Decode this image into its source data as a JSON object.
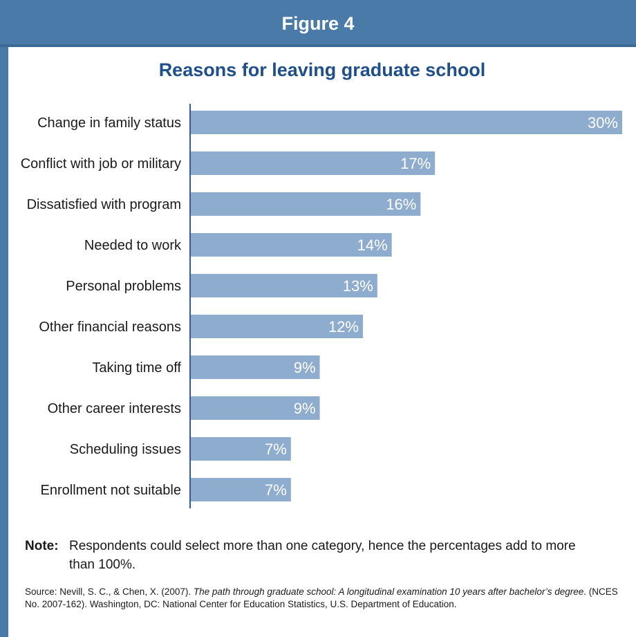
{
  "header": {
    "title": "Figure 4"
  },
  "chart_data": {
    "type": "bar",
    "orientation": "horizontal",
    "title": "Reasons for leaving graduate school",
    "categories": [
      "Change in family status",
      "Conflict with job or military",
      "Dissatisfied with program",
      "Needed to work",
      "Personal problems",
      "Other financial reasons",
      "Taking time off",
      "Other career interests",
      "Scheduling issues",
      "Enrollment not suitable"
    ],
    "values": [
      30,
      17,
      16,
      14,
      13,
      12,
      9,
      9,
      7,
      7
    ],
    "value_labels": [
      "30%",
      "17%",
      "16%",
      "14%",
      "13%",
      "12%",
      "9%",
      "9%",
      "7%",
      "7%"
    ],
    "xlim": [
      0,
      30
    ],
    "grid": false,
    "legend": "none",
    "bar_color": "#8eacce",
    "axis_color": "#2f5f90"
  },
  "note": {
    "label": "Note:",
    "text": "Respondents could select more than one category, hence the percentages add to more than 100%."
  },
  "source": {
    "prefix": "Source: Nevill, S. C., & Chen, X. (2007). ",
    "title": "The path through graduate school: A longitudinal examination 10 years after bachelor’s degree",
    "suffix": ". (NCES No. 2007-162). Washington, DC: National Center for Education Statistics, U.S. Department of Education."
  }
}
